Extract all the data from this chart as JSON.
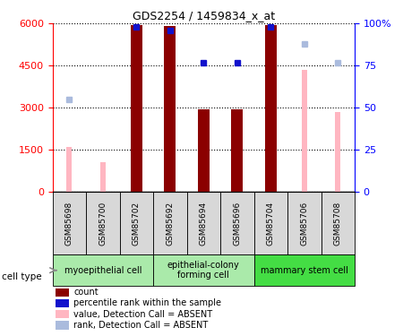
{
  "title": "GDS2254 / 1459834_x_at",
  "samples": [
    "GSM85698",
    "GSM85700",
    "GSM85702",
    "GSM85692",
    "GSM85694",
    "GSM85696",
    "GSM85704",
    "GSM85706",
    "GSM85708"
  ],
  "count_values": [
    null,
    null,
    5950,
    5900,
    2950,
    2950,
    5950,
    null,
    null
  ],
  "count_color": "#8B0000",
  "pink_values": [
    1600,
    1050,
    null,
    null,
    null,
    null,
    null,
    4350,
    2850
  ],
  "pink_color": "#FFB6C1",
  "blue_sq_values": [
    null,
    null,
    98,
    96,
    77,
    77,
    98,
    null,
    null
  ],
  "blue_sq_color": "#1111CC",
  "light_blue_sq_values": [
    55,
    null,
    null,
    null,
    null,
    null,
    null,
    88,
    77
  ],
  "light_blue_sq_color": "#AABBDD",
  "ylim_left": [
    0,
    6000
  ],
  "ylim_right": [
    0,
    100
  ],
  "yticks_left": [
    0,
    1500,
    3000,
    4500,
    6000
  ],
  "yticks_right": [
    0,
    25,
    50,
    75,
    100
  ],
  "cell_groups": [
    {
      "label": "myoepithelial cell",
      "start": 0,
      "end": 2,
      "color": "#AAEAAA"
    },
    {
      "label": "epithelial-colony\nforming cell",
      "start": 3,
      "end": 5,
      "color": "#AAEAAA"
    },
    {
      "label": "mammary stem cell",
      "start": 6,
      "end": 8,
      "color": "#44DD44"
    }
  ],
  "cell_type_label": "cell type",
  "legend_items": [
    {
      "label": "count",
      "color": "#8B0000"
    },
    {
      "label": "percentile rank within the sample",
      "color": "#1111CC"
    },
    {
      "label": "value, Detection Call = ABSENT",
      "color": "#FFB6C1"
    },
    {
      "label": "rank, Detection Call = ABSENT",
      "color": "#AABBDD"
    }
  ],
  "bar_width": 0.35,
  "pink_bar_width": 0.15
}
